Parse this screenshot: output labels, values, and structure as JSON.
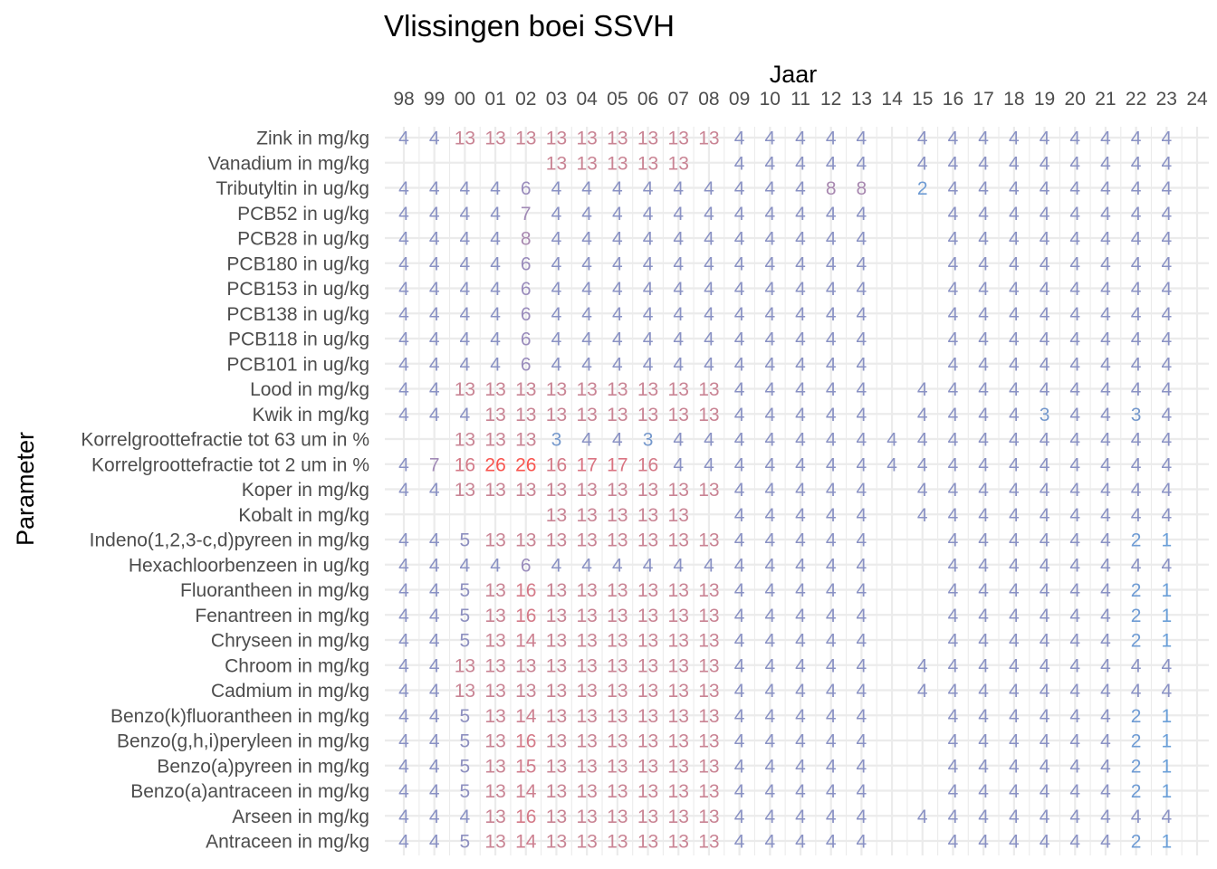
{
  "chart_data": {
    "type": "heatmap",
    "title": "Vlissingen boei SSVH",
    "xlabel": "Jaar",
    "ylabel": "Parameter",
    "x_position": "top",
    "grid": true,
    "x": [
      "98",
      "99",
      "00",
      "01",
      "02",
      "03",
      "04",
      "05",
      "06",
      "07",
      "08",
      "09",
      "10",
      "11",
      "12",
      "13",
      "14",
      "15",
      "16",
      "17",
      "18",
      "19",
      "20",
      "21",
      "22",
      "23",
      "24"
    ],
    "rows": [
      {
        "label": "Zink in mg/kg",
        "values": [
          4,
          4,
          13,
          13,
          13,
          13,
          13,
          13,
          13,
          13,
          13,
          4,
          4,
          4,
          4,
          4,
          null,
          4,
          4,
          4,
          4,
          4,
          4,
          4,
          4,
          4,
          null
        ]
      },
      {
        "label": "Vanadium in mg/kg",
        "values": [
          null,
          null,
          null,
          null,
          null,
          13,
          13,
          13,
          13,
          13,
          null,
          4,
          4,
          4,
          4,
          4,
          null,
          4,
          4,
          4,
          4,
          4,
          4,
          4,
          4,
          4,
          null
        ]
      },
      {
        "label": "Tributyltin in ug/kg",
        "values": [
          4,
          4,
          4,
          4,
          6,
          4,
          4,
          4,
          4,
          4,
          4,
          4,
          4,
          4,
          8,
          8,
          null,
          2,
          4,
          4,
          4,
          4,
          4,
          4,
          4,
          4,
          null
        ]
      },
      {
        "label": "PCB52 in ug/kg",
        "values": [
          4,
          4,
          4,
          4,
          7,
          4,
          4,
          4,
          4,
          4,
          4,
          4,
          4,
          4,
          4,
          4,
          null,
          null,
          4,
          4,
          4,
          4,
          4,
          4,
          4,
          4,
          null
        ]
      },
      {
        "label": "PCB28 in ug/kg",
        "values": [
          4,
          4,
          4,
          4,
          8,
          4,
          4,
          4,
          4,
          4,
          4,
          4,
          4,
          4,
          4,
          4,
          null,
          null,
          4,
          4,
          4,
          4,
          4,
          4,
          4,
          4,
          null
        ]
      },
      {
        "label": "PCB180 in ug/kg",
        "values": [
          4,
          4,
          4,
          4,
          6,
          4,
          4,
          4,
          4,
          4,
          4,
          4,
          4,
          4,
          4,
          4,
          null,
          null,
          4,
          4,
          4,
          4,
          4,
          4,
          4,
          4,
          null
        ]
      },
      {
        "label": "PCB153 in ug/kg",
        "values": [
          4,
          4,
          4,
          4,
          6,
          4,
          4,
          4,
          4,
          4,
          4,
          4,
          4,
          4,
          4,
          4,
          null,
          null,
          4,
          4,
          4,
          4,
          4,
          4,
          4,
          4,
          null
        ]
      },
      {
        "label": "PCB138 in ug/kg",
        "values": [
          4,
          4,
          4,
          4,
          6,
          4,
          4,
          4,
          4,
          4,
          4,
          4,
          4,
          4,
          4,
          4,
          null,
          null,
          4,
          4,
          4,
          4,
          4,
          4,
          4,
          4,
          null
        ]
      },
      {
        "label": "PCB118 in ug/kg",
        "values": [
          4,
          4,
          4,
          4,
          6,
          4,
          4,
          4,
          4,
          4,
          4,
          4,
          4,
          4,
          4,
          4,
          null,
          null,
          4,
          4,
          4,
          4,
          4,
          4,
          4,
          4,
          null
        ]
      },
      {
        "label": "PCB101 in ug/kg",
        "values": [
          4,
          4,
          4,
          4,
          6,
          4,
          4,
          4,
          4,
          4,
          4,
          4,
          4,
          4,
          4,
          4,
          null,
          null,
          4,
          4,
          4,
          4,
          4,
          4,
          4,
          4,
          null
        ]
      },
      {
        "label": "Lood in mg/kg",
        "values": [
          4,
          4,
          13,
          13,
          13,
          13,
          13,
          13,
          13,
          13,
          13,
          4,
          4,
          4,
          4,
          4,
          null,
          4,
          4,
          4,
          4,
          4,
          4,
          4,
          4,
          4,
          null
        ]
      },
      {
        "label": "Kwik in mg/kg",
        "values": [
          4,
          4,
          4,
          13,
          13,
          13,
          13,
          13,
          13,
          13,
          13,
          4,
          4,
          4,
          4,
          4,
          null,
          4,
          4,
          4,
          4,
          3,
          4,
          4,
          3,
          4,
          null
        ]
      },
      {
        "label": "Korrelgroottefractie tot 63 um in %",
        "values": [
          null,
          null,
          13,
          13,
          13,
          3,
          4,
          4,
          3,
          4,
          4,
          4,
          4,
          4,
          4,
          4,
          4,
          4,
          4,
          4,
          4,
          4,
          4,
          4,
          4,
          4,
          null
        ]
      },
      {
        "label": "Korrelgroottefractie tot 2 um in %",
        "values": [
          4,
          7,
          16,
          26,
          26,
          16,
          17,
          17,
          16,
          4,
          4,
          4,
          4,
          4,
          4,
          4,
          4,
          4,
          4,
          4,
          4,
          4,
          4,
          4,
          4,
          4,
          null
        ]
      },
      {
        "label": "Koper in mg/kg",
        "values": [
          4,
          4,
          13,
          13,
          13,
          13,
          13,
          13,
          13,
          13,
          13,
          4,
          4,
          4,
          4,
          4,
          null,
          4,
          4,
          4,
          4,
          4,
          4,
          4,
          4,
          4,
          null
        ]
      },
      {
        "label": "Kobalt in mg/kg",
        "values": [
          null,
          null,
          null,
          null,
          null,
          13,
          13,
          13,
          13,
          13,
          null,
          4,
          4,
          4,
          4,
          4,
          null,
          4,
          4,
          4,
          4,
          4,
          4,
          4,
          4,
          4,
          null
        ]
      },
      {
        "label": "Indeno(1,2,3-c,d)pyreen in mg/kg",
        "values": [
          4,
          4,
          5,
          13,
          13,
          13,
          13,
          13,
          13,
          13,
          13,
          4,
          4,
          4,
          4,
          4,
          null,
          null,
          4,
          4,
          4,
          4,
          4,
          4,
          2,
          1,
          null
        ]
      },
      {
        "label": "Hexachloorbenzeen in ug/kg",
        "values": [
          4,
          4,
          4,
          4,
          6,
          4,
          4,
          4,
          4,
          4,
          4,
          4,
          4,
          4,
          4,
          4,
          null,
          null,
          4,
          4,
          4,
          4,
          4,
          4,
          4,
          4,
          null
        ]
      },
      {
        "label": "Fluorantheen in mg/kg",
        "values": [
          4,
          4,
          5,
          13,
          16,
          13,
          13,
          13,
          13,
          13,
          13,
          4,
          4,
          4,
          4,
          4,
          null,
          null,
          4,
          4,
          4,
          4,
          4,
          4,
          2,
          1,
          null
        ]
      },
      {
        "label": "Fenantreen in mg/kg",
        "values": [
          4,
          4,
          5,
          13,
          16,
          13,
          13,
          13,
          13,
          13,
          13,
          4,
          4,
          4,
          4,
          4,
          null,
          null,
          4,
          4,
          4,
          4,
          4,
          4,
          2,
          1,
          null
        ]
      },
      {
        "label": "Chryseen in mg/kg",
        "values": [
          4,
          4,
          5,
          13,
          14,
          13,
          13,
          13,
          13,
          13,
          13,
          4,
          4,
          4,
          4,
          4,
          null,
          null,
          4,
          4,
          4,
          4,
          4,
          4,
          2,
          1,
          null
        ]
      },
      {
        "label": "Chroom in mg/kg",
        "values": [
          4,
          4,
          13,
          13,
          13,
          13,
          13,
          13,
          13,
          13,
          13,
          4,
          4,
          4,
          4,
          4,
          null,
          4,
          4,
          4,
          4,
          4,
          4,
          4,
          4,
          4,
          null
        ]
      },
      {
        "label": "Cadmium in mg/kg",
        "values": [
          4,
          4,
          13,
          13,
          13,
          13,
          13,
          13,
          13,
          13,
          13,
          4,
          4,
          4,
          4,
          4,
          null,
          4,
          4,
          4,
          4,
          4,
          4,
          4,
          4,
          4,
          null
        ]
      },
      {
        "label": "Benzo(k)fluorantheen in mg/kg",
        "values": [
          4,
          4,
          5,
          13,
          14,
          13,
          13,
          13,
          13,
          13,
          13,
          4,
          4,
          4,
          4,
          4,
          null,
          null,
          4,
          4,
          4,
          4,
          4,
          4,
          2,
          1,
          null
        ]
      },
      {
        "label": "Benzo(g,h,i)peryleen in mg/kg",
        "values": [
          4,
          4,
          5,
          13,
          16,
          13,
          13,
          13,
          13,
          13,
          13,
          4,
          4,
          4,
          4,
          4,
          null,
          null,
          4,
          4,
          4,
          4,
          4,
          4,
          2,
          1,
          null
        ]
      },
      {
        "label": "Benzo(a)pyreen in mg/kg",
        "values": [
          4,
          4,
          5,
          13,
          15,
          13,
          13,
          13,
          13,
          13,
          13,
          4,
          4,
          4,
          4,
          4,
          null,
          null,
          4,
          4,
          4,
          4,
          4,
          4,
          2,
          1,
          null
        ]
      },
      {
        "label": "Benzo(a)antraceen in mg/kg",
        "values": [
          4,
          4,
          5,
          13,
          14,
          13,
          13,
          13,
          13,
          13,
          13,
          4,
          4,
          4,
          4,
          4,
          null,
          null,
          4,
          4,
          4,
          4,
          4,
          4,
          2,
          1,
          null
        ]
      },
      {
        "label": "Arseen in mg/kg",
        "values": [
          4,
          4,
          4,
          13,
          16,
          13,
          13,
          13,
          13,
          13,
          13,
          4,
          4,
          4,
          4,
          4,
          null,
          4,
          4,
          4,
          4,
          4,
          4,
          4,
          4,
          4,
          null
        ]
      },
      {
        "label": "Antraceen in mg/kg",
        "values": [
          4,
          4,
          5,
          13,
          14,
          13,
          13,
          13,
          13,
          13,
          13,
          4,
          4,
          4,
          4,
          4,
          null,
          null,
          4,
          4,
          4,
          4,
          4,
          4,
          2,
          1,
          null
        ]
      }
    ],
    "value_colors": {
      "1": "#6a9fd8",
      "2": "#6f9cd4",
      "3": "#7598cc",
      "4": "#8a92c4",
      "5": "#8e90c0",
      "6": "#9a8cbc",
      "7": "#a18ab6",
      "8": "#a888b0",
      "13": "#c98494",
      "14": "#cd8090",
      "15": "#d17c8c",
      "16": "#d47a88",
      "17": "#da7482",
      "26": "#f8554f"
    },
    "grid_color": "#ebebeb"
  }
}
